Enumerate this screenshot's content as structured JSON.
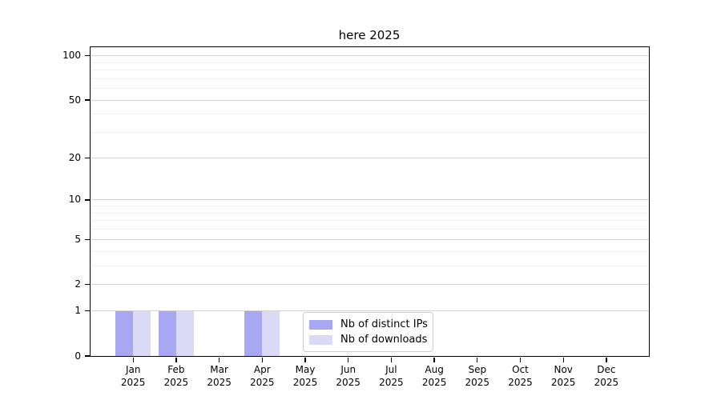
{
  "figure": {
    "title": "here 2025"
  },
  "chart_data": {
    "type": "bar",
    "title": "here 2025",
    "categories": [
      "Jan 2025",
      "Feb 2025",
      "Mar 2025",
      "Apr 2025",
      "May 2025",
      "Jun 2025",
      "Jul 2025",
      "Aug 2025",
      "Sep 2025",
      "Oct 2025",
      "Nov 2025",
      "Dec 2025"
    ],
    "series": [
      {
        "name": "Nb of distinct IPs",
        "color": "#a7a7f2",
        "values": [
          1,
          1,
          0,
          1,
          0,
          0,
          0,
          0,
          0,
          0,
          0,
          0
        ]
      },
      {
        "name": "Nb of downloads",
        "color": "#dadaf7",
        "values": [
          1,
          1,
          0,
          1,
          0,
          0,
          0,
          0,
          0,
          0,
          0,
          0
        ]
      }
    ],
    "xlabel": "",
    "ylabel": "",
    "yscale": "log1p",
    "y_ticks": [
      0,
      1,
      2,
      5,
      10,
      20,
      50,
      100
    ],
    "y_minor_gridlines": [
      3,
      4,
      6,
      7,
      8,
      9,
      30,
      40,
      60,
      70,
      80,
      90
    ],
    "ylim": [
      0,
      114
    ],
    "grid": "horizontal",
    "legend": {
      "position": "inside-bottom-center",
      "items": [
        "Nb of distinct IPs",
        "Nb of downloads"
      ]
    }
  }
}
